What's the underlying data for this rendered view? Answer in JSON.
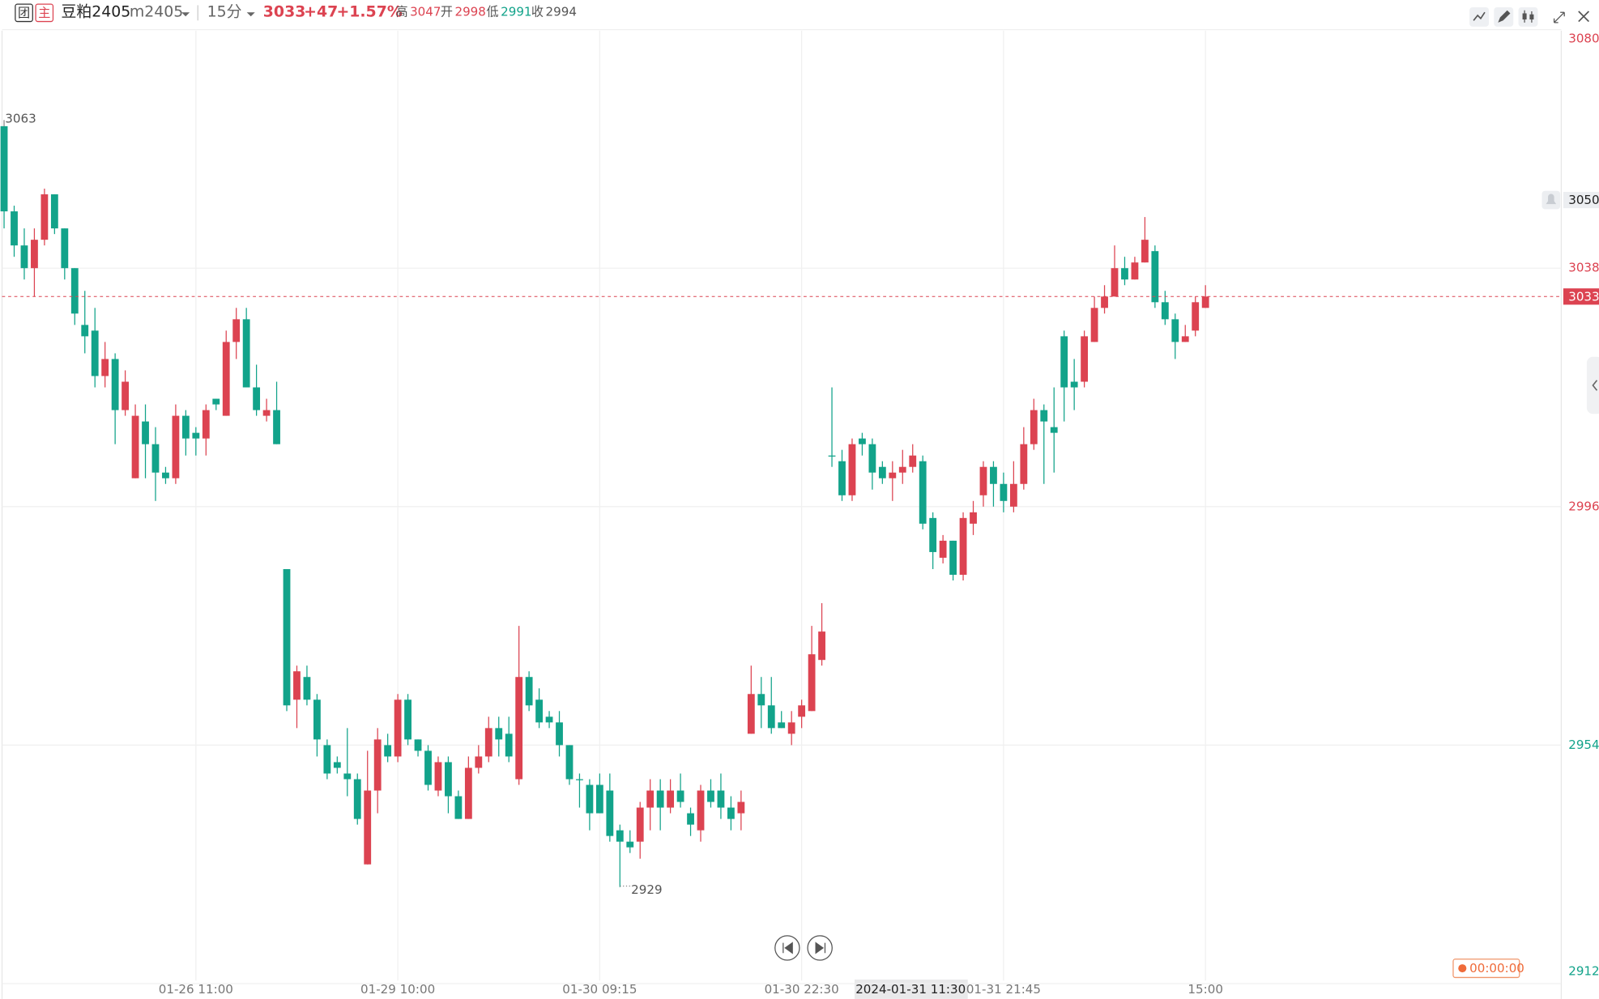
{
  "header": {
    "badges": [
      "团",
      "主"
    ],
    "symbol_name": "豆粕2405",
    "symbol_code": "m2405",
    "interval": "15分",
    "last": 3033,
    "change": {
      "value": 47,
      "label": "+47"
    },
    "change_pct": {
      "value": 1.57,
      "label": "+1.57%"
    },
    "high_label": "高",
    "high": 3047,
    "open_label": "开",
    "open": 2998,
    "low_label": "低",
    "low": 2991,
    "close_label": "收",
    "close": 2994
  },
  "chart_data": {
    "type": "candlestick",
    "categories": [
      null,
      null,
      null,
      null,
      null,
      null,
      null,
      null,
      null,
      null,
      null,
      null,
      null,
      null,
      null,
      null,
      null,
      null,
      null,
      "01-26 11:00",
      null,
      null,
      null,
      null,
      null,
      null,
      null,
      null,
      null,
      null,
      null,
      null,
      null,
      null,
      null,
      null,
      null,
      null,
      null,
      "01-29 10:00",
      null,
      null,
      null,
      null,
      null,
      null,
      null,
      null,
      null,
      null,
      null,
      null,
      null,
      null,
      null,
      null,
      null,
      null,
      null,
      "01-30 09:15",
      null,
      null,
      null,
      null,
      null,
      null,
      null,
      null,
      null,
      null,
      null,
      null,
      null,
      null,
      null,
      null,
      null,
      null,
      null,
      "01-30 22:30",
      null,
      null,
      null,
      null,
      null,
      null,
      null,
      null,
      null,
      null,
      null,
      null,
      null,
      null,
      null,
      null,
      null,
      null,
      null,
      "01-31 21:45",
      null,
      null,
      null,
      null,
      null,
      null,
      null,
      null,
      null,
      null,
      null,
      null,
      null,
      null,
      null,
      null,
      null,
      null,
      null,
      "15:00"
    ],
    "open": [
      3063,
      3048,
      3042,
      3038,
      3043,
      3051,
      3045,
      3038,
      3028,
      3027,
      3019,
      3022,
      3013,
      3001,
      3011,
      3007,
      3002,
      3001,
      3012,
      3009,
      3008,
      3015,
      3012,
      3025,
      3029,
      3017,
      3012,
      3013,
      2985,
      2962,
      2966,
      2962,
      2954,
      2951,
      2949,
      2948,
      2933,
      2946,
      2954,
      2952,
      2962,
      2955,
      2953,
      2946,
      2951,
      2945,
      2941,
      2950,
      2952,
      2957,
      2956,
      2948,
      2966,
      2962,
      2959,
      2958,
      2954,
      2948,
      2947,
      2947,
      2946,
      2939,
      2937,
      2937,
      2943,
      2946,
      2943,
      2946,
      2942,
      2939,
      2946,
      2946,
      2943,
      2942,
      2956,
      2963,
      2961,
      2958,
      2956,
      2959,
      2960,
      2969,
      3005,
      3004,
      2998,
      3008,
      3007,
      3003,
      3001,
      3002,
      3003,
      3004,
      2994,
      2987,
      2990,
      2984,
      2993,
      2998,
      3003,
      3000,
      2996,
      3000,
      3007,
      3013,
      3010,
      3026,
      3018,
      3018,
      3025,
      3031,
      3033,
      3038,
      3036,
      3039,
      3041,
      3032,
      3029,
      3025,
      3027,
      3031
    ],
    "high": [
      3063,
      3049,
      3045,
      3045,
      3052,
      3051,
      3045,
      3038,
      3034,
      3031,
      3025,
      3023,
      3020,
      3014,
      3014,
      3010,
      3003,
      3014,
      3013,
      3010,
      3014,
      3015,
      3027,
      3031,
      3031,
      3021,
      3015,
      3018,
      2985,
      2968,
      2968,
      2963,
      2955,
      2952,
      2957,
      2949,
      2953,
      2957,
      2956,
      2963,
      2963,
      2955,
      2954,
      2952,
      2952,
      2946,
      2952,
      2954,
      2959,
      2959,
      2959,
      2975,
      2967,
      2964,
      2960,
      2960,
      2954,
      2949,
      2948,
      2949,
      2949,
      2940,
      2939,
      2944,
      2948,
      2948,
      2948,
      2949,
      2943,
      2947,
      2948,
      2949,
      2945,
      2946,
      2968,
      2966,
      2966,
      2960,
      2960,
      2962,
      2975,
      2979,
      3017,
      3006,
      3008,
      3009,
      3008,
      3004,
      3004,
      3006,
      3007,
      3005,
      2995,
      2991,
      2990,
      2995,
      2997,
      3004,
      3004,
      3002,
      3004,
      3010,
      3015,
      3014,
      3017,
      3027,
      3022,
      3027,
      3033,
      3035,
      3042,
      3040,
      3040,
      3047,
      3042,
      3034,
      3030,
      3028,
      3033,
      3035
    ],
    "low": [
      3045,
      3040,
      3036,
      3033,
      3042,
      3044,
      3036,
      3028,
      3023,
      3017,
      3017,
      3007,
      3012,
      3001,
      3001,
      2997,
      3000,
      3000,
      3005,
      3005,
      3005,
      3013,
      3012,
      3022,
      3017,
      3012,
      3011,
      3007,
      2960,
      2957,
      2961,
      2952,
      2948,
      2949,
      2945,
      2940,
      2933,
      2942,
      2951,
      2951,
      2954,
      2952,
      2946,
      2945,
      2942,
      2941,
      2941,
      2949,
      2951,
      2952,
      2951,
      2947,
      2960,
      2957,
      2957,
      2952,
      2947,
      2943,
      2939,
      2942,
      2937,
      2929,
      2935,
      2934,
      2939,
      2939,
      2942,
      2943,
      2938,
      2937,
      2943,
      2941,
      2939,
      2939,
      2956,
      2957,
      2956,
      2957,
      2954,
      2957,
      2960,
      2968,
      3003,
      2997,
      2997,
      3005,
      2999,
      3000,
      2997,
      3000,
      3002,
      2992,
      2985,
      2986,
      2983,
      2983,
      2991,
      2996,
      2996,
      2995,
      2995,
      2999,
      3006,
      3000,
      3002,
      3011,
      3013,
      3017,
      3025,
      3030,
      3033,
      3035,
      3036,
      3039,
      3031,
      3028,
      3022,
      3025,
      3026,
      3031
    ],
    "close": [
      3048,
      3042,
      3038,
      3043,
      3051,
      3045,
      3038,
      3030,
      3026,
      3019,
      3022,
      3013,
      3018,
      3012,
      3007,
      3002,
      3001,
      3012,
      3008,
      3008,
      3013,
      3014,
      3025,
      3029,
      3017,
      3013,
      3013,
      3007,
      2961,
      2967,
      2962,
      2955,
      2949,
      2950,
      2948,
      2941,
      2946,
      2955,
      2952,
      2962,
      2955,
      2953,
      2947,
      2951,
      2945,
      2941,
      2950,
      2952,
      2957,
      2955,
      2952,
      2966,
      2961,
      2958,
      2958,
      2954,
      2948,
      2948,
      2942,
      2942,
      2938,
      2937,
      2936,
      2943,
      2946,
      2943,
      2946,
      2944,
      2940,
      2946,
      2944,
      2943,
      2941,
      2944,
      2963,
      2961,
      2957,
      2957,
      2958,
      2961,
      2970,
      2974,
      3005,
      2998,
      3007,
      3007,
      3002,
      3001,
      3002,
      3003,
      3005,
      2993,
      2988,
      2990,
      2984,
      2994,
      2995,
      3003,
      3000,
      2997,
      3000,
      3007,
      3013,
      3011,
      3009,
      3017,
      3017,
      3026,
      3031,
      3033,
      3038,
      3036,
      3039,
      3043,
      3032,
      3029,
      3025,
      3026,
      3032,
      3033
    ],
    "up_color": "#dc4351",
    "down_color": "#12a38a",
    "ylim": [
      2912,
      3080
    ],
    "yticks": [
      2912,
      2954,
      2996,
      3038,
      3080
    ],
    "ytick_colors": [
      "#12a38a",
      "#12a38a",
      "#dc4351",
      "#dc4351",
      "#dc4351"
    ],
    "grid": true,
    "current_price": 3033,
    "alert_price": 3050,
    "max_label": 3063,
    "min_label": 2929,
    "crosshair_time": "2024-01-31 11:30",
    "timer": "00:00:00"
  }
}
